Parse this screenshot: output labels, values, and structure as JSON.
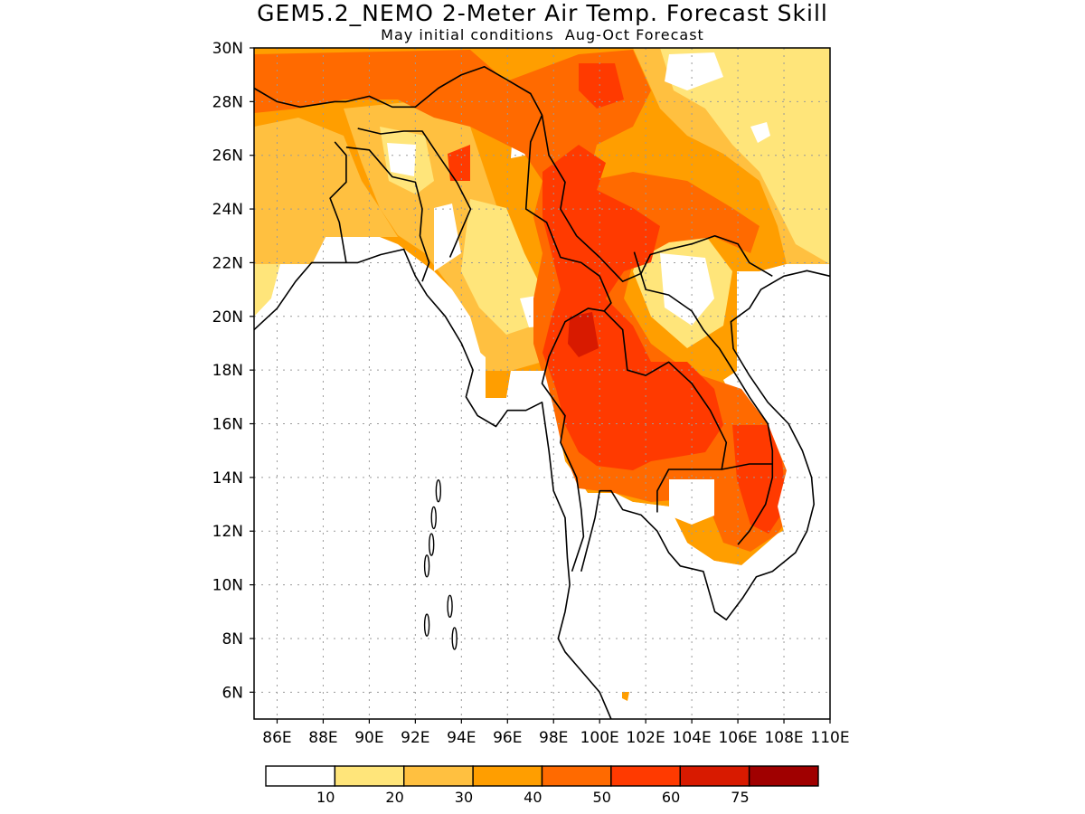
{
  "title": "GEM5.2_NEMO 2-Meter Air Temp. Forecast Skill",
  "subtitle": "May initial conditions  Aug-Oct Forecast",
  "map": {
    "lat_labels": [
      "30N",
      "28N",
      "26N",
      "24N",
      "22N",
      "20N",
      "18N",
      "16N",
      "14N",
      "12N",
      "10N",
      "8N",
      "6N"
    ],
    "lon_labels": [
      "86E",
      "88E",
      "90E",
      "92E",
      "94E",
      "96E",
      "98E",
      "100E",
      "102E",
      "104E",
      "106E",
      "108E",
      "110E"
    ],
    "lon_range": [
      85,
      110
    ],
    "lat_range": [
      5,
      30
    ],
    "grid": "dotted",
    "coastlines": true
  },
  "colorbar": {
    "colors": [
      "#ffffff",
      "#ffe57a",
      "#ffc040",
      "#ff9e00",
      "#ff6a00",
      "#ff3a00",
      "#d81a00",
      "#a00000"
    ],
    "labels": [
      "10",
      "20",
      "30",
      "40",
      "50",
      "60",
      "75"
    ]
  },
  "chart_data": {
    "type": "heatmap",
    "title": "GEM5.2_NEMO 2-Meter Air Temp. Forecast Skill",
    "subtitle": "May initial conditions  Aug-Oct Forecast",
    "x_range": [
      85,
      110
    ],
    "y_range": [
      5,
      30
    ],
    "levels": [
      10,
      20,
      30,
      40,
      50,
      60,
      75
    ],
    "colors": [
      "#ffffff",
      "#ffe57a",
      "#ffc040",
      "#ff9e00",
      "#ff6a00",
      "#ff3a00",
      "#d81a00",
      "#a00000"
    ],
    "regions": [
      {
        "level": "30-40",
        "approx_lon": [
          85,
          110
        ],
        "approx_lat": [
          22,
          30
        ]
      },
      {
        "level": "40-50",
        "approx_lon": [
          85,
          96
        ],
        "approx_lat": [
          27,
          30
        ]
      },
      {
        "level": "50-60",
        "approx_lon": [
          98,
          102
        ],
        "approx_lat": [
          21,
          26
        ]
      },
      {
        "level": "50-60",
        "approx_lon": [
          99,
          103
        ],
        "approx_lat": [
          14,
          20
        ]
      },
      {
        "level": "60-75",
        "approx_lon": [
          99.5,
          100.5
        ],
        "approx_lat": [
          18.5,
          20
        ]
      },
      {
        "level": "50-60",
        "approx_lon": [
          105.5,
          108
        ],
        "approx_lat": [
          11,
          16
        ]
      }
    ]
  }
}
